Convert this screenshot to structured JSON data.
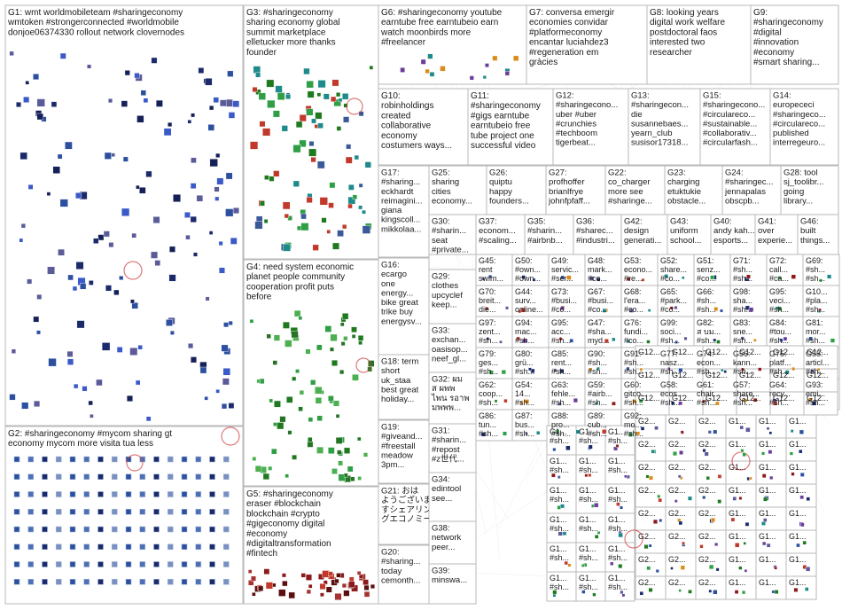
{
  "theme": {
    "background": "#ffffff",
    "border": "#b8b8b8",
    "edge": "#9a9a9a",
    "text": "#1a1a1a",
    "node_colors": [
      "#1b2a6b",
      "#2c4fa0",
      "#1f7a1f",
      "#2f9e44",
      "#8b1a1a",
      "#c0392b",
      "#5b5b9a",
      "#d98c1a",
      "#6a3d9a",
      "#1f8a8a"
    ]
  },
  "groups": [
    {
      "id": "G1",
      "lines": [
        "G1: wmt worldmobileteam #sharingeconomy",
        "wmtoken #strongerconnected #worldmobile",
        "donjoe06374330 rollout network clovernodes"
      ]
    },
    {
      "id": "G2",
      "lines": [
        "G2: #sharingeconomy #mycom sharing gt",
        "economy mycom more visita tua less"
      ]
    },
    {
      "id": "G3",
      "lines": [
        "G3: #sharingeconomy",
        "sharing economy global",
        "summit marketplace",
        "elletucker more thanks",
        "founder"
      ]
    },
    {
      "id": "G4",
      "lines": [
        "G4: need system economic",
        "planet people community",
        "cooperation profit puts",
        "before"
      ]
    },
    {
      "id": "G5",
      "lines": [
        "G5: #sharingeconomy",
        "eraser #blockchain",
        "blockchain #crypto",
        "#gigeconomy digital",
        "#economy",
        "#digitaltransformation",
        "#fintech"
      ]
    },
    {
      "id": "G6",
      "lines": [
        "G6: #sharingeconomy youtube",
        "earntube free earntubeio earn",
        "watch moonbirds more",
        "#freelancer"
      ]
    },
    {
      "id": "G7",
      "lines": [
        "G7: conversa emergir",
        "economies convidar",
        "#platformeconomy",
        "encantar luciahdez3",
        "#regeneration em",
        "gràcies"
      ]
    },
    {
      "id": "G8",
      "lines": [
        "G8: looking years",
        "digital work welfare",
        "postdoctoral faos",
        "interested two",
        "researcher"
      ]
    },
    {
      "id": "G9",
      "lines": [
        "G9:",
        "#sharingeconomy",
        "#digital",
        "#innovation",
        "#economy",
        "#smart sharing..."
      ]
    },
    {
      "id": "G10",
      "lines": [
        "G10:",
        "robinholdings",
        "created",
        "collaborative",
        "economy",
        "costumers ways..."
      ]
    },
    {
      "id": "G11",
      "lines": [
        "G11:",
        "#sharingeconomy",
        "#gigs earntube",
        "earntubeio free",
        "tube project one",
        "successful video"
      ]
    },
    {
      "id": "G12",
      "lines": [
        "G12:",
        "#sharingecono...",
        "uber #uber",
        "#crunchies",
        "#techboom",
        "tigerbeat..."
      ]
    },
    {
      "id": "G13",
      "lines": [
        "G13:",
        "#sharingecon...",
        "die",
        "susannebaes...",
        "yearn_club",
        "susisor17318..."
      ]
    },
    {
      "id": "G15",
      "lines": [
        "G15:",
        "#sharingecono...",
        "#circulareco...",
        "#sustainable...",
        "#collaborativ...",
        "#circularfash..."
      ]
    },
    {
      "id": "G14",
      "lines": [
        "G14:",
        "europececi",
        "#sharingeco...",
        "#circulareco...",
        "published",
        "interregeurо..."
      ]
    },
    {
      "id": "G17",
      "lines": [
        "G17:",
        "#sharing...",
        "eckhardt",
        "reimagini...",
        "giana",
        "kingscoll...",
        "mikkolaa..."
      ]
    },
    {
      "id": "G25",
      "lines": [
        "G25:",
        "sharing",
        "cities",
        "economy..."
      ]
    },
    {
      "id": "G26",
      "lines": [
        "G26:",
        "quiptu",
        "happy",
        "founders..."
      ]
    },
    {
      "id": "G27",
      "lines": [
        "G27:",
        "profhoffer",
        "brianlfrye",
        "johnfpfaff..."
      ]
    },
    {
      "id": "G22",
      "lines": [
        "G22:",
        "co_charger",
        "more see",
        "#sharinge..."
      ]
    },
    {
      "id": "G23",
      "lines": [
        "G23:",
        "charging",
        "etuktukie",
        "obstacle..."
      ]
    },
    {
      "id": "G24",
      "lines": [
        "G24:",
        "#sharingec...",
        "jennapalas",
        "obscpb..."
      ]
    },
    {
      "id": "G28",
      "lines": [
        "G28: tool",
        "sj_toolibr...",
        "going",
        "library..."
      ]
    },
    {
      "id": "G16",
      "lines": [
        "G16:",
        "ecargo",
        "one",
        "energy...",
        "bike great",
        "trike buy",
        "energysv..."
      ]
    },
    {
      "id": "G30",
      "lines": [
        "G30:",
        "#sharin...",
        "seat",
        "#private..."
      ]
    },
    {
      "id": "G18",
      "lines": [
        "G18: term",
        "short",
        "uk_staa",
        "best great",
        "holiday..."
      ]
    },
    {
      "id": "G19",
      "lines": [
        "G19:",
        "#giveand...",
        "#freestall",
        "meadow",
        "3pm..."
      ]
    },
    {
      "id": "G21",
      "lines": [
        "G21: おは",
        "ようございま",
        "すシェアリン",
        "グエコノミー..."
      ]
    },
    {
      "id": "G20",
      "lines": [
        "G20:",
        "#sharing...",
        "today",
        "cemonth..."
      ]
    },
    {
      "id": "G29",
      "lines": [
        "G29:",
        "clothes",
        "upcyclef",
        "keep..."
      ]
    },
    {
      "id": "G33",
      "lines": [
        "G33:",
        "exchan...",
        "oasisop...",
        "neef_gl..."
      ]
    },
    {
      "id": "G32",
      "lines": [
        "G32: ผม",
        "ส ผพพ",
        "ไพน รอาพ",
        "มพพพ..."
      ]
    },
    {
      "id": "G31",
      "lines": [
        "G31:",
        "#sharin...",
        "#repost",
        "#z世代..."
      ]
    },
    {
      "id": "G34",
      "lines": [
        "G34:",
        "edintool",
        "see..."
      ]
    },
    {
      "id": "G38",
      "lines": [
        "G38:",
        "network",
        "peer..."
      ]
    },
    {
      "id": "G39",
      "lines": [
        "G39:",
        "minswa..."
      ]
    },
    {
      "id": "G37",
      "lines": [
        "G37:",
        "econom...",
        "#scaling..."
      ]
    },
    {
      "id": "G35",
      "lines": [
        "G35:",
        "#sharin...",
        "#airbnb..."
      ]
    },
    {
      "id": "G36",
      "lines": [
        "G36:",
        "#sharec...",
        "#industri..."
      ]
    },
    {
      "id": "G42",
      "lines": [
        "G42:",
        "design",
        "generati..."
      ]
    },
    {
      "id": "G43",
      "lines": [
        "G43:",
        "uniform",
        "school..."
      ]
    },
    {
      "id": "G40",
      "lines": [
        "G40:",
        "andy kah...",
        "esports..."
      ]
    },
    {
      "id": "G41",
      "lines": [
        "G41:",
        "over",
        "experie..."
      ]
    },
    {
      "id": "G46",
      "lines": [
        "G46:",
        "built",
        "things..."
      ]
    }
  ],
  "small_groups": [
    {
      "id": "G45",
      "lines": [
        "G45:",
        "rent",
        "swim..."
      ]
    },
    {
      "id": "G50",
      "lines": [
        "G50:",
        "#own...",
        "#own..."
      ]
    },
    {
      "id": "G49",
      "lines": [
        "G49:",
        "servic...",
        "#ser..."
      ]
    },
    {
      "id": "G48",
      "lines": [
        "G48:",
        "mark...",
        "#co..."
      ]
    },
    {
      "id": "G53",
      "lines": [
        "G53:",
        "econo...",
        "#re..."
      ]
    },
    {
      "id": "G52",
      "lines": [
        "G52:",
        "share...",
        "#co..."
      ]
    },
    {
      "id": "G51",
      "lines": [
        "G51:",
        "senz...",
        "#co..."
      ]
    },
    {
      "id": "G71",
      "lines": [
        "G71:",
        "#sh...",
        "#sh..."
      ]
    },
    {
      "id": "G72",
      "lines": [
        "G72:",
        "call...",
        "#ca..."
      ]
    },
    {
      "id": "G69",
      "lines": [
        "G69:",
        "#sh...",
        "#sh..."
      ]
    },
    {
      "id": "G70",
      "lines": [
        "G70:",
        "breit...",
        "die..."
      ]
    },
    {
      "id": "G44",
      "lines": [
        "G44:",
        "surv...",
        "online..."
      ]
    },
    {
      "id": "G73",
      "lines": [
        "G73:",
        "#busi...",
        "#co..."
      ]
    },
    {
      "id": "G67",
      "lines": [
        "G67:",
        "#busi...",
        "#co..."
      ]
    },
    {
      "id": "G68",
      "lines": [
        "G68:",
        "l'era...",
        "#co..."
      ]
    },
    {
      "id": "G65",
      "lines": [
        "G65:",
        "#park...",
        "#co..."
      ]
    },
    {
      "id": "G66",
      "lines": [
        "G66:",
        "#sh...",
        "#sh..."
      ]
    },
    {
      "id": "G98",
      "lines": [
        "G98:",
        "sha...",
        "#sh..."
      ]
    },
    {
      "id": "G95",
      "lines": [
        "G95:",
        "veci...",
        "#sh..."
      ]
    },
    {
      "id": "G10b",
      "lines": [
        "G10...",
        "#pla...",
        "#sh..."
      ]
    },
    {
      "id": "G97",
      "lines": [
        "G97:",
        "zent...",
        "#sh..."
      ]
    },
    {
      "id": "G94",
      "lines": [
        "G94:",
        "mac...",
        "#sh..."
      ]
    },
    {
      "id": "G95b",
      "lines": [
        "G95:",
        "acc...",
        "#sh..."
      ]
    },
    {
      "id": "G47",
      "lines": [
        "G47:",
        "#sha...",
        "myd..."
      ]
    },
    {
      "id": "G76",
      "lines": [
        "G76:",
        "fundi...",
        "#co..."
      ]
    },
    {
      "id": "G99",
      "lines": [
        "G99:",
        "soci...",
        "#sh..."
      ]
    },
    {
      "id": "G82",
      "lines": [
        "G82:",
        "ส บม...",
        "#sh..."
      ]
    },
    {
      "id": "G83",
      "lines": [
        "G83:",
        "sne...",
        "#sh..."
      ]
    },
    {
      "id": "G84",
      "lines": [
        "G84:",
        "#tou...",
        "#sh..."
      ]
    },
    {
      "id": "G81",
      "lines": [
        "G81:",
        "mor...",
        "#sh..."
      ]
    },
    {
      "id": "G79",
      "lines": [
        "G79:",
        "ges...",
        "#sh..."
      ]
    },
    {
      "id": "G80",
      "lines": [
        "G80:",
        "grü...",
        "#sh..."
      ]
    },
    {
      "id": "G85",
      "lines": [
        "G85:",
        "rent...",
        "#sh..."
      ]
    },
    {
      "id": "G90",
      "lines": [
        "G90:",
        "#sh...",
        "#sh..."
      ]
    },
    {
      "id": "G91",
      "lines": [
        "G91:",
        "#sh...",
        "#sh..."
      ]
    },
    {
      "id": "G77",
      "lines": [
        "G77:",
        "nasz...",
        "#sh..."
      ]
    },
    {
      "id": "G74",
      "lines": [
        "G74:",
        "econ...",
        "#sh..."
      ]
    },
    {
      "id": "G56",
      "lines": [
        "G56:",
        "kann...",
        "#sh..."
      ]
    },
    {
      "id": "G75",
      "lines": [
        "G75:",
        "platf...",
        "#sh..."
      ]
    },
    {
      "id": "G55",
      "lines": [
        "G55:",
        "articl...",
        "#sh..."
      ]
    },
    {
      "id": "G62",
      "lines": [
        "G62:",
        "coop...",
        "#sh..."
      ]
    },
    {
      "id": "G54",
      "lines": [
        "G54:",
        "14...",
        "#sh..."
      ]
    },
    {
      "id": "G63",
      "lines": [
        "G63:",
        "fehle...",
        "#sh..."
      ]
    },
    {
      "id": "G59",
      "lines": [
        "G59:",
        "#airb...",
        "#sh..."
      ]
    },
    {
      "id": "G60",
      "lines": [
        "G60:",
        "gitco...",
        "#sh..."
      ]
    },
    {
      "id": "G58",
      "lines": [
        "G58:",
        "ecos...",
        "#sh..."
      ]
    },
    {
      "id": "G61",
      "lines": [
        "G61:",
        "chair...",
        "#sh..."
      ]
    },
    {
      "id": "G57",
      "lines": [
        "G57:",
        "share...",
        "#sh..."
      ]
    },
    {
      "id": "G64",
      "lines": [
        "G64:",
        "recy...",
        "#sh..."
      ]
    },
    {
      "id": "G93",
      "lines": [
        "G93:",
        "emi...",
        "#sh..."
      ]
    },
    {
      "id": "G86",
      "lines": [
        "G86:",
        "tun...",
        "#sh..."
      ]
    },
    {
      "id": "G87",
      "lines": [
        "G87:",
        "bus...",
        "#sh..."
      ]
    },
    {
      "id": "G88",
      "lines": [
        "G88:",
        "pro...",
        "#sh..."
      ]
    },
    {
      "id": "G89",
      "lines": [
        "G89:",
        "cub...",
        "#sh..."
      ]
    },
    {
      "id": "G92",
      "lines": [
        "G92:",
        "mo...",
        "#sh..."
      ]
    }
  ],
  "tiny_label": "G1...",
  "tiny_label_alt": "G2...",
  "tiny_label_alt2": "G12...",
  "hub_labels": [
    "worldmobile",
    "wmtoken",
    "sharingeconomy",
    "blockchain",
    "earntube",
    "mycom",
    "clovernodes",
    "globalsummit"
  ]
}
